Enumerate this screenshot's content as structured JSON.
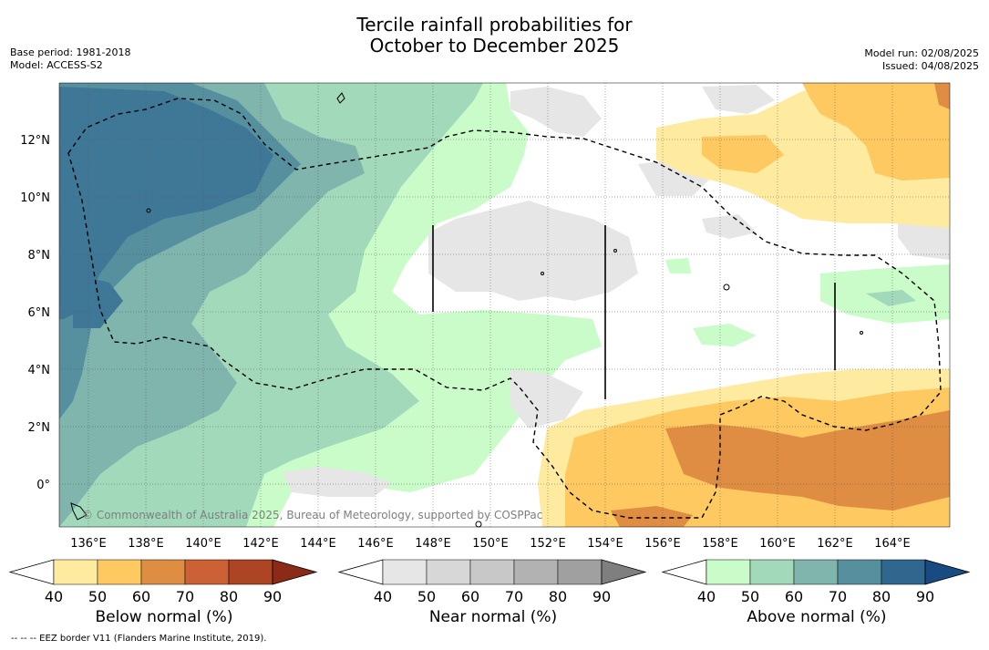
{
  "title": {
    "line1": "Tercile rainfall probabilities for",
    "line2": "October to December 2025"
  },
  "meta": {
    "base_period": "Base period: 1981-2018",
    "model": "Model: ACCESS-S2",
    "model_run": "Model run: 02/08/2025",
    "issued": "Issued: 04/08/2025"
  },
  "map": {
    "lon_labels": [
      "136°E",
      "138°E",
      "140°E",
      "142°E",
      "144°E",
      "146°E",
      "148°E",
      "150°E",
      "152°E",
      "154°E",
      "156°E",
      "158°E",
      "160°E",
      "162°E",
      "164°E"
    ],
    "lat_labels": [
      "12°N",
      "10°N",
      "8°N",
      "6°N",
      "4°N",
      "2°N",
      "0°"
    ],
    "copyright": "© Commonwealth of Australia 2025, Bureau of Meteorology, supported by COSPPac"
  },
  "colorbars": [
    {
      "label": "Below normal (%)",
      "ticks": [
        "40",
        "50",
        "60",
        "70",
        "80",
        "90"
      ],
      "colors": [
        "#ffffff",
        "#feeba0",
        "#fdc960",
        "#e08d44",
        "#cb6134",
        "#ad4424",
        "#8b2a17"
      ]
    },
    {
      "label": "Near normal (%)",
      "ticks": [
        "40",
        "50",
        "60",
        "70",
        "80",
        "90"
      ],
      "colors": [
        "#ffffff",
        "#e6e6e6",
        "#d7d7d7",
        "#c8c8c8",
        "#b2b2b2",
        "#a0a0a0",
        "#7f7f7f"
      ]
    },
    {
      "label": "Above normal (%)",
      "ticks": [
        "40",
        "50",
        "60",
        "70",
        "80",
        "90"
      ],
      "colors": [
        "#ffffff",
        "#c9fcc8",
        "#a3d9bb",
        "#80b5ad",
        "#56909f",
        "#2f6791",
        "#174b82"
      ]
    }
  ],
  "footnote": "--  --  -- EEZ border V11 (Flanders Marine Institute, 2019)."
}
